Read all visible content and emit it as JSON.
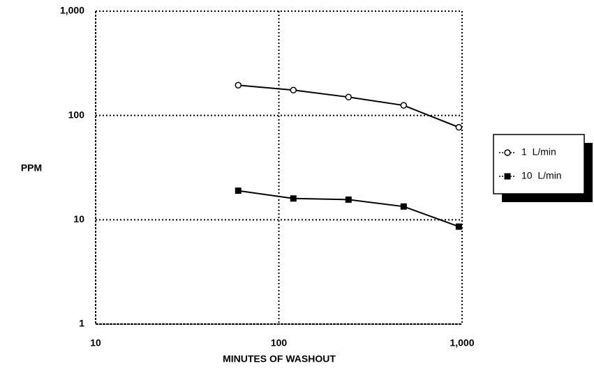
{
  "chart_data": {
    "type": "line",
    "x_label": "MINUTES OF WASHOUT",
    "y_label": "PPM",
    "x": [
      60,
      120,
      240,
      480,
      960
    ],
    "series": [
      {
        "name": "1  L/min",
        "color": "#000000",
        "marker": "open-circle",
        "values": [
          195,
          175,
          150,
          125,
          77
        ]
      },
      {
        "name": "10  L/min",
        "color": "#000000",
        "marker": "filled-square",
        "values": [
          19,
          16,
          15.6,
          13.4,
          8.6
        ]
      }
    ],
    "xlim": [
      10,
      1000
    ],
    "ylim": [
      1,
      1000
    ],
    "xticks": [
      10,
      100,
      {
        "value": 1000,
        "label": "1,000"
      }
    ],
    "yticks": [
      1,
      10,
      100,
      {
        "value": 1000,
        "label": "1,000"
      }
    ],
    "log_x": true,
    "log_y": true,
    "grid": true,
    "legend": "right"
  }
}
